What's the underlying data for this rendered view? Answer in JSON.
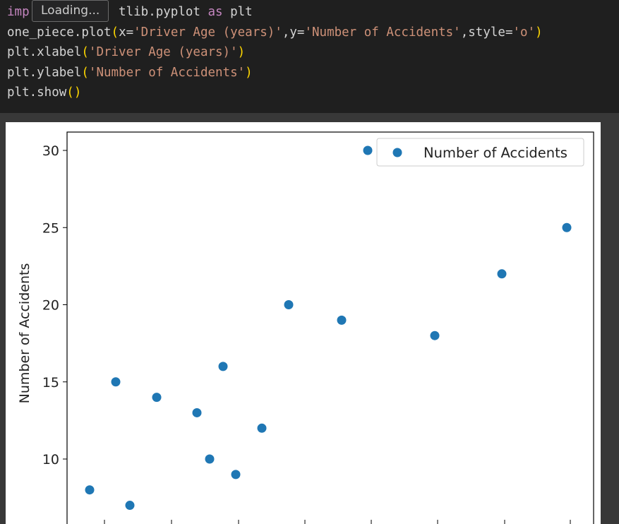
{
  "tooltip": {
    "text": "Loading..."
  },
  "code": {
    "line1": {
      "kw_import": "imp",
      "rest": "tlib.pyplot ",
      "kw_as": "as",
      "tail": " plt"
    },
    "line2": {
      "a": "one_piece.plot",
      "open": "(",
      "b": "x=",
      "s1": "'Driver Age (years)'",
      "c": ",y=",
      "s2": "'Number of Accidents'",
      "d": ",style=",
      "s3": "'o'",
      "close": ")"
    },
    "line3": {
      "a": "plt.xlabel",
      "open": "(",
      "s": "'Driver Age (years)'",
      "close": ")"
    },
    "line4": {
      "a": "plt.ylabel",
      "open": "(",
      "s": "'Number of Accidents'",
      "close": ")"
    },
    "line5": {
      "a": "plt.show",
      "paren": "()"
    }
  },
  "chart_data": {
    "type": "scatter",
    "ylabel": "Number of Accidents",
    "ylim": [
      6.8,
      31.2
    ],
    "yticks": [
      10,
      15,
      20,
      25,
      30
    ],
    "grid": false,
    "legend_position": "top-right",
    "series": [
      {
        "name": "Number of Accidents",
        "color": "#1f77b4",
        "y": [
          8,
          15,
          7,
          14,
          13,
          10,
          16,
          9,
          12,
          20,
          30,
          19,
          18,
          22,
          25
        ]
      }
    ]
  }
}
